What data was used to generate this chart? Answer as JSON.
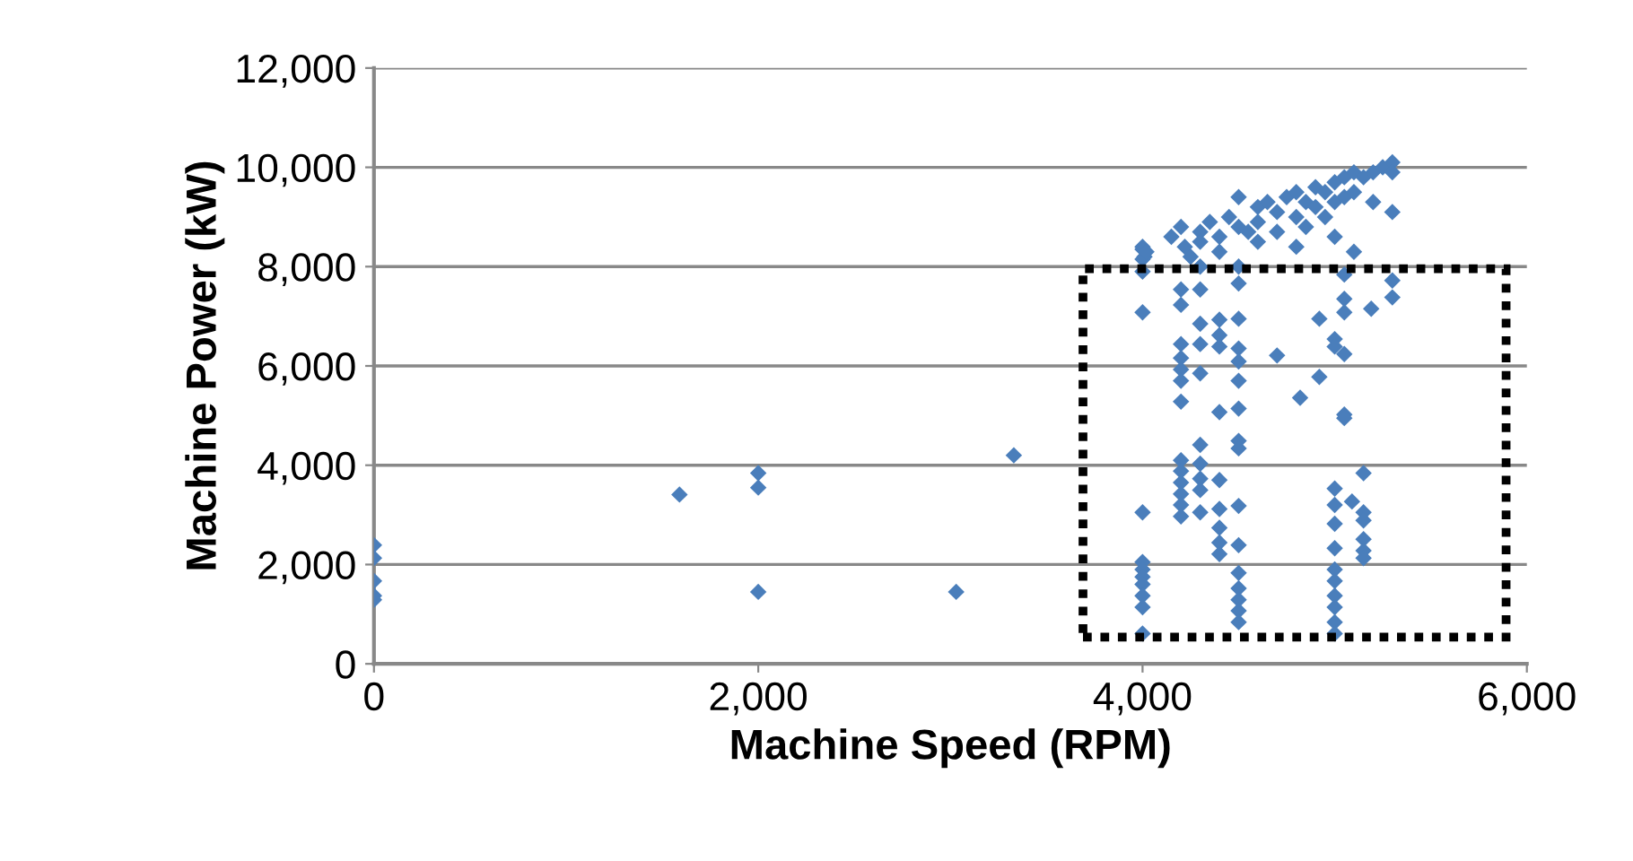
{
  "chart_data": {
    "type": "scatter",
    "xlabel": "Machine Speed (RPM)",
    "ylabel": "Machine Power (kW)",
    "xlim": [
      0,
      6000
    ],
    "ylim": [
      0,
      12000
    ],
    "xticks": [
      0,
      {
        "value": 2000,
        "label": "2,000"
      },
      {
        "value": 4000,
        "label": "4,000"
      },
      {
        "value": 6000,
        "label": "6,000"
      }
    ],
    "yticks": [
      0,
      {
        "value": 2000,
        "label": "2,000"
      },
      {
        "value": 4000,
        "label": "4,000"
      },
      {
        "value": 6000,
        "label": "6,000"
      },
      {
        "value": 8000,
        "label": "8,000"
      },
      {
        "value": 10000,
        "label": "10,000"
      },
      {
        "value": 12000,
        "label": "12,000"
      }
    ],
    "grid": "y",
    "marker": "diamond",
    "series": [
      {
        "color": "#4a7ebb",
        "x": [
          0,
          0,
          0,
          0,
          0,
          1590,
          2000,
          2000,
          2000,
          3030,
          3330,
          4000,
          4000,
          4000,
          4000,
          4000,
          4000,
          4000,
          4000,
          4000,
          4000,
          4000,
          4000,
          4200,
          4200,
          4200,
          4200,
          4200,
          4200,
          4200,
          4200,
          4200,
          4200,
          4200,
          4200,
          4200,
          4300,
          4300,
          4300,
          4300,
          4300,
          4300,
          4300,
          4300,
          4300,
          4400,
          4400,
          4400,
          4400,
          4400,
          4400,
          4400,
          4400,
          4400,
          4500,
          4500,
          4500,
          4500,
          4500,
          4500,
          4500,
          4500,
          4500,
          4500,
          4500,
          4500,
          4500,
          4500,
          4500,
          4700,
          4820,
          4920,
          4920,
          5000,
          5000,
          5000,
          5000,
          5000,
          5000,
          5000,
          5000,
          5000,
          5000,
          5000,
          5000,
          5050,
          5050,
          5050,
          5050,
          5050,
          5050,
          5090,
          5150,
          5150,
          5150,
          5150,
          5150,
          5150,
          5190,
          5300,
          5300,
          4000,
          4010,
          4020,
          4150,
          4200,
          4220,
          4250,
          4300,
          4300,
          4350,
          4400,
          4400,
          4450,
          4500,
          4500,
          4550,
          4600,
          4600,
          4650,
          4700,
          4700,
          4750,
          4800,
          4800,
          4850,
          4850,
          4900,
          4900,
          4950,
          4950,
          5000,
          5000,
          5000,
          5050,
          5050,
          5100,
          5100,
          5150,
          5200,
          5250,
          5300,
          5300,
          5300,
          5200,
          4800,
          4600,
          4300,
          4500,
          5100
        ],
        "values": [
          2390,
          2130,
          1670,
          1370,
          1290,
          3410,
          3840,
          3550,
          1450,
          1450,
          4200,
          3050,
          2050,
          1900,
          1750,
          1600,
          1370,
          1140,
          610,
          7080,
          8350,
          8150,
          7900,
          4100,
          3880,
          3650,
          3420,
          3200,
          2970,
          6440,
          6160,
          5930,
          5700,
          5280,
          7230,
          7540,
          4410,
          4030,
          3730,
          3500,
          3050,
          6440,
          5850,
          6850,
          7540,
          5070,
          3700,
          3120,
          2740,
          2440,
          2210,
          6620,
          6390,
          6930,
          6950,
          6350,
          6090,
          5700,
          5140,
          4490,
          4340,
          3180,
          2390,
          1830,
          1520,
          1290,
          1070,
          840,
          7660,
          6210,
          5360,
          5780,
          6950,
          3530,
          3200,
          2820,
          2330,
          1900,
          1670,
          1370,
          1140,
          840,
          610,
          6540,
          6390,
          5020,
          4950,
          6240,
          7080,
          7350,
          7840,
          3270,
          3840,
          3050,
          2890,
          2510,
          2280,
          2130,
          7150,
          7380,
          7720,
          8400,
          8200,
          8300,
          8600,
          8800,
          8400,
          8200,
          8700,
          8500,
          8900,
          8600,
          8300,
          9000,
          9400,
          8800,
          8700,
          9200,
          8900,
          9300,
          9100,
          8700,
          9400,
          9500,
          9000,
          9300,
          8800,
          9600,
          9200,
          9500,
          9000,
          9700,
          9300,
          8600,
          9800,
          9400,
          9900,
          9500,
          9800,
          9900,
          10000,
          10100,
          9900,
          9100,
          9300,
          8400,
          8500,
          8000,
          8000,
          8300
        ]
      }
    ]
  }
}
